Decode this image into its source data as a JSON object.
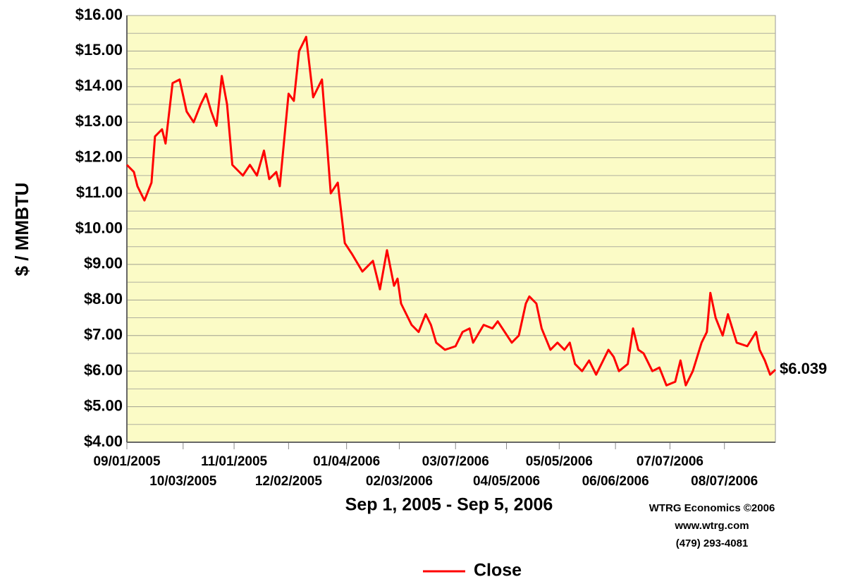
{
  "chart_data": {
    "type": "line",
    "x_label": "Sep 1, 2005 - Sep 5, 2006",
    "y_label": "$ / MMBTU",
    "credits": [
      "WTRG Economics  ©2006",
      "www.wtrg.com",
      "(479) 293-4081"
    ],
    "x": [
      "2005-09-01",
      "2005-09-05",
      "2005-09-07",
      "2005-09-11",
      "2005-09-15",
      "2005-09-17",
      "2005-09-21",
      "2005-09-23",
      "2005-09-27",
      "2005-10-01",
      "2005-10-05",
      "2005-10-09",
      "2005-10-13",
      "2005-10-16",
      "2005-10-19",
      "2005-10-22",
      "2005-10-25",
      "2005-10-28",
      "2005-10-31",
      "2005-11-06",
      "2005-11-10",
      "2005-11-14",
      "2005-11-18",
      "2005-11-21",
      "2005-11-25",
      "2005-11-27",
      "2005-12-02",
      "2005-12-05",
      "2005-12-08",
      "2005-12-12",
      "2005-12-16",
      "2005-12-21",
      "2005-12-24",
      "2005-12-26",
      "2005-12-30",
      "2006-01-03",
      "2006-01-07",
      "2006-01-13",
      "2006-01-19",
      "2006-01-23",
      "2006-01-27",
      "2006-01-31",
      "2006-02-02",
      "2006-02-04",
      "2006-02-10",
      "2006-02-14",
      "2006-02-18",
      "2006-02-21",
      "2006-02-24",
      "2006-03-01",
      "2006-03-07",
      "2006-03-11",
      "2006-03-15",
      "2006-03-17",
      "2006-03-23",
      "2006-03-28",
      "2006-03-31",
      "2006-04-04",
      "2006-04-08",
      "2006-04-12",
      "2006-04-16",
      "2006-04-18",
      "2006-04-22",
      "2006-04-25",
      "2006-04-30",
      "2006-05-04",
      "2006-05-08",
      "2006-05-11",
      "2006-05-14",
      "2006-05-18",
      "2006-05-22",
      "2006-05-26",
      "2006-05-30",
      "2006-06-02",
      "2006-06-05",
      "2006-06-08",
      "2006-06-13",
      "2006-06-16",
      "2006-06-19",
      "2006-06-22",
      "2006-06-27",
      "2006-07-01",
      "2006-07-05",
      "2006-07-10",
      "2006-07-13",
      "2006-07-16",
      "2006-07-20",
      "2006-07-25",
      "2006-07-28",
      "2006-07-30",
      "2006-08-02",
      "2006-08-06",
      "2006-08-09",
      "2006-08-14",
      "2006-08-20",
      "2006-08-25",
      "2006-08-27",
      "2006-08-30",
      "2006-09-02",
      "2006-09-05"
    ],
    "series": [
      {
        "name": "Close",
        "color": "#ff0000",
        "values": [
          11.8,
          11.6,
          11.2,
          10.8,
          11.3,
          12.6,
          12.8,
          12.4,
          14.1,
          14.2,
          13.3,
          13.0,
          13.5,
          13.8,
          13.3,
          12.9,
          14.3,
          13.5,
          11.8,
          11.5,
          11.8,
          11.5,
          12.2,
          11.4,
          11.6,
          11.2,
          13.8,
          13.6,
          15.0,
          15.4,
          13.7,
          14.2,
          12.3,
          11.0,
          11.3,
          9.6,
          9.3,
          8.8,
          9.1,
          8.3,
          9.4,
          8.4,
          8.6,
          7.9,
          7.3,
          7.1,
          7.6,
          7.3,
          6.8,
          6.6,
          6.7,
          7.1,
          7.2,
          6.8,
          7.3,
          7.2,
          7.4,
          7.1,
          6.8,
          7.0,
          7.9,
          8.1,
          7.9,
          7.2,
          6.6,
          6.8,
          6.6,
          6.8,
          6.2,
          6.0,
          6.3,
          5.9,
          6.3,
          6.6,
          6.4,
          6.0,
          6.2,
          7.2,
          6.6,
          6.5,
          6.0,
          6.1,
          5.6,
          5.7,
          6.3,
          5.6,
          6.0,
          6.8,
          7.1,
          8.2,
          7.5,
          7.0,
          7.6,
          6.8,
          6.7,
          7.1,
          6.6,
          6.3,
          5.9,
          6.039
        ],
        "value_labels": [
          null,
          null,
          null,
          null,
          null,
          null,
          null,
          null,
          null,
          null,
          null,
          null,
          null,
          null,
          null,
          null,
          null,
          null,
          null,
          null,
          null,
          null,
          null,
          null,
          null,
          null,
          null,
          null,
          null,
          null,
          null,
          null,
          null,
          null,
          null,
          null,
          null,
          null,
          null,
          null,
          null,
          null,
          null,
          null,
          null,
          null,
          null,
          null,
          null,
          null,
          null,
          null,
          null,
          null,
          null,
          null,
          null,
          null,
          null,
          null,
          null,
          null,
          null,
          null,
          null,
          null,
          null,
          null,
          null,
          null,
          null,
          null,
          null,
          null,
          null,
          null,
          null,
          null,
          null,
          null,
          null,
          null,
          null,
          null,
          null,
          null,
          null,
          null,
          null,
          null,
          null,
          null,
          null,
          null,
          null,
          null,
          null,
          null,
          null,
          "$6.039"
        ]
      }
    ],
    "xlim": [
      "2005-09-01",
      "2006-09-05"
    ],
    "xticks": [
      {
        "value": "2005-09-01",
        "label": "09/01/2005"
      },
      {
        "value": "2005-10-03",
        "label": "10/03/2005"
      },
      {
        "value": "2005-11-01",
        "label": "11/01/2005"
      },
      {
        "value": "2005-12-02",
        "label": "12/02/2005"
      },
      {
        "value": "2006-01-04",
        "label": "01/04/2006"
      },
      {
        "value": "2006-02-03",
        "label": "02/03/2006"
      },
      {
        "value": "2006-03-07",
        "label": "03/07/2006"
      },
      {
        "value": "2006-04-05",
        "label": "04/05/2006"
      },
      {
        "value": "2006-05-05",
        "label": "05/05/2006"
      },
      {
        "value": "2006-06-06",
        "label": "06/06/2006"
      },
      {
        "value": "2006-07-07",
        "label": "07/07/2006"
      },
      {
        "value": "2006-08-07",
        "label": "08/07/2006"
      }
    ],
    "ylim": [
      4,
      16
    ],
    "yticks": [
      {
        "value": 4,
        "label": "$4.00"
      },
      {
        "value": 5,
        "label": "$5.00"
      },
      {
        "value": 6,
        "label": "$6.00"
      },
      {
        "value": 7,
        "label": "$7.00"
      },
      {
        "value": 8,
        "label": "$8.00"
      },
      {
        "value": 9,
        "label": "$9.00"
      },
      {
        "value": 10,
        "label": "$10.00"
      },
      {
        "value": 11,
        "label": "$11.00"
      },
      {
        "value": 12,
        "label": "$12.00"
      },
      {
        "value": 13,
        "label": "$13.00"
      },
      {
        "value": 14,
        "label": "$14.00"
      },
      {
        "value": 15,
        "label": "$15.00"
      },
      {
        "value": 16,
        "label": "$16.00"
      }
    ],
    "minor_yticks": [
      4.5,
      5.5,
      6.5,
      7.5,
      8.5,
      9.5,
      10.5,
      11.5,
      12.5,
      13.5,
      14.5,
      15.5
    ],
    "grid": true,
    "background": "#fbfbc6",
    "legend": "bottom"
  }
}
